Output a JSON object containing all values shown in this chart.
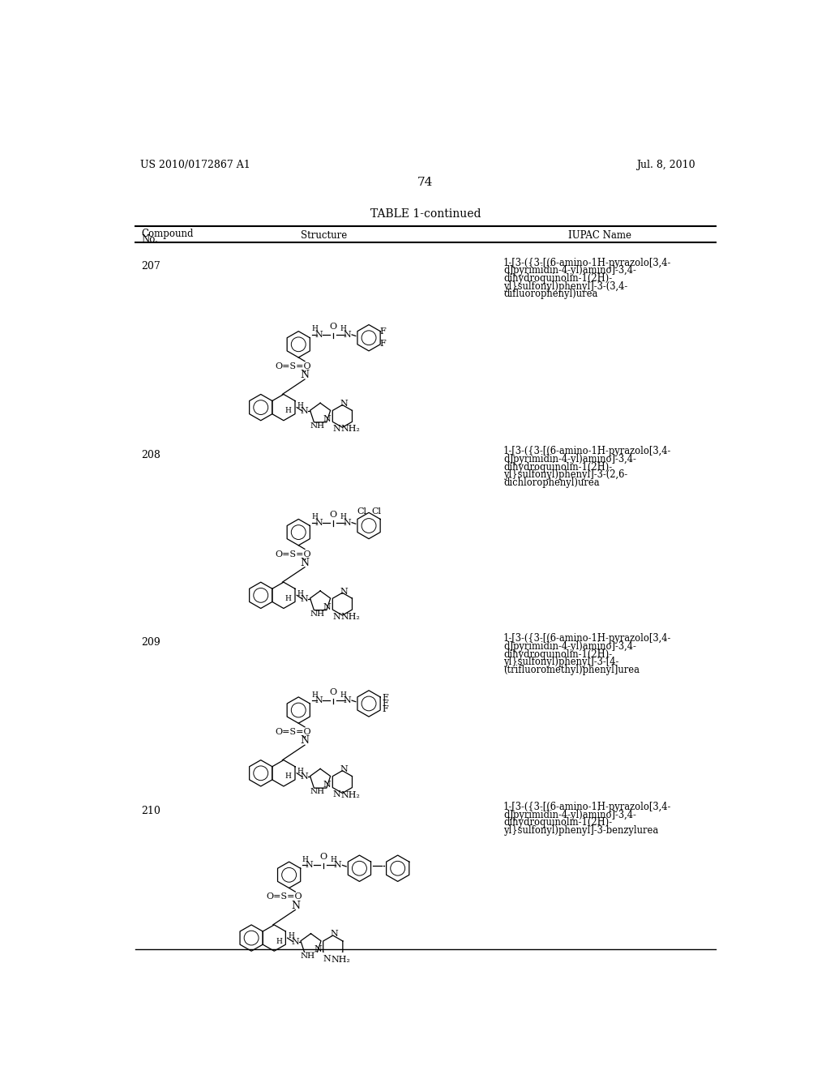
{
  "page_number": "74",
  "patent_number": "US 2010/0172867 A1",
  "patent_date": "Jul. 8, 2010",
  "table_title": "TABLE 1-continued",
  "background_color": "#ffffff",
  "compounds": [
    {
      "number": "207",
      "iupac": "1-[3-({3-[(6-amino-1H-pyrazolo[3,4-\nd]pyrimidin-4-yl)amino]-3,4-\ndihydroquinolin-1(2H)-\nyl}sulfonyl)phenyl]-3-(3,4-\ndifluorophenyl)urea"
    },
    {
      "number": "208",
      "iupac": "1-[3-({3-[(6-amino-1H-pyrazolo[3,4-\nd]pyrimidin-4-yl)amino]-3,4-\ndihydroquinolin-1(2H)-\nyl}sulfonyl)phenyl]-3-(2,6-\ndichlorophenyl)urea"
    },
    {
      "number": "209",
      "iupac": "1-[3-({3-[(6-amino-1H-pyrazolo[3,4-\nd]pyrimidin-4-yl)amino]-3,4-\ndihydroquinolin-1(2H)-\nyl}sulfonyl)phenyl]-3-[4-\n(trifluoromethyl)phenyl]urea"
    },
    {
      "number": "210",
      "iupac": "1-[3-({3-[(6-amino-1H-pyrazolo[3,4-\nd]pyrimidin-4-yl)amino]-3,4-\ndihydroquinolin-1(2H)-\nyl}sulfonyl)phenyl]-3-benzylurea"
    }
  ],
  "row_tops": [
    185,
    487,
    787,
    1057
  ],
  "row_bottoms": [
    487,
    787,
    1057,
    1315
  ]
}
